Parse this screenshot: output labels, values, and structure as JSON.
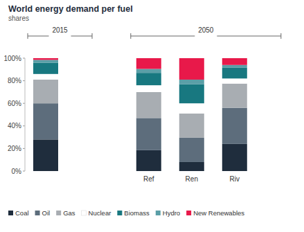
{
  "chart_data": {
    "type": "bar",
    "title": "World energy demand per fuel",
    "subtitle": "shares",
    "annotations": [
      "2015",
      "2050"
    ],
    "categories": [
      null,
      "Ref",
      "Ren",
      "Riv"
    ],
    "stacked": true,
    "grid": false,
    "legend": "bottom",
    "ylim": [
      0,
      100
    ],
    "yticks": [
      {
        "value": 0,
        "label": "0%"
      },
      {
        "value": 20,
        "label": "20%"
      },
      {
        "value": 40,
        "label": "40%"
      },
      {
        "value": 60,
        "label": "60%"
      },
      {
        "value": 80,
        "label": "80%"
      },
      {
        "value": 100,
        "label": "100%"
      }
    ],
    "series": [
      {
        "name": "Coal",
        "color": "#1f2d3d",
        "values": [
          28,
          18.5,
          8,
          24
        ]
      },
      {
        "name": "Oil",
        "color": "#5d6d7c",
        "values": [
          32,
          28.5,
          21.5,
          32
        ]
      },
      {
        "name": "Gas",
        "color": "#a8adb2",
        "values": [
          21,
          23,
          21.5,
          21.5
        ]
      },
      {
        "name": "Nuclear",
        "color": "#ffffff",
        "values": [
          5,
          6,
          9,
          4.5
        ]
      },
      {
        "name": "Biomass",
        "color": "#187880",
        "values": [
          10,
          11,
          17,
          9.5
        ]
      },
      {
        "name": "Hydro",
        "color": "#5b9fa7",
        "values": [
          2.5,
          3.5,
          4,
          2.5
        ]
      },
      {
        "name": "New Renewables",
        "color": "#e8194a",
        "values": [
          1.5,
          9.5,
          19,
          6
        ]
      }
    ]
  }
}
